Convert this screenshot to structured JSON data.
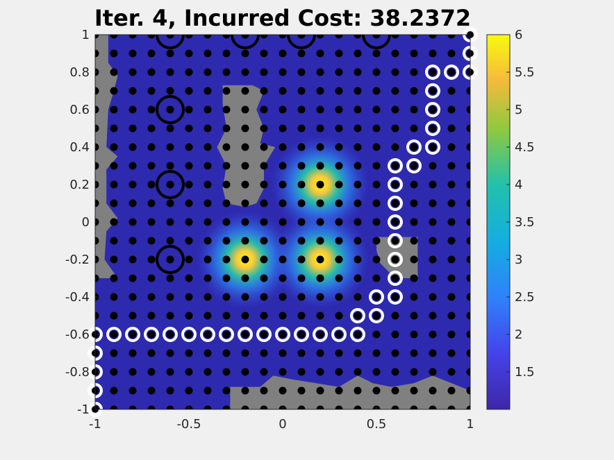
{
  "chart_data": {
    "type": "heatmap",
    "title": "Iter. 4,   Incurred Cost: 38.2372",
    "xlabel": "",
    "ylabel": "",
    "xlim": [
      -1,
      1
    ],
    "ylim": [
      -1,
      1
    ],
    "x_ticks": [
      "-1",
      "-0.5",
      "0",
      "0.5",
      "1"
    ],
    "y_ticks": [
      "1",
      "0.8",
      "0.6",
      "0.4",
      "0.2",
      "0",
      "-0.2",
      "-0.4",
      "-0.6",
      "-0.8",
      "-1"
    ],
    "colorbar": {
      "range": [
        1,
        6
      ],
      "ticks": [
        "1.5",
        "2",
        "2.5",
        "3",
        "3.5",
        "4",
        "4.5",
        "5",
        "5.5",
        "6"
      ]
    },
    "colors": {
      "background": "#2d2ab0",
      "obstacle": "#808080",
      "grid_point": "#000000",
      "path_marker": "#ffffff",
      "target_marker": "#000000"
    },
    "hot_spots": [
      {
        "x": 0.2,
        "y": 0.2,
        "peak": 6
      },
      {
        "x": -0.2,
        "y": -0.2,
        "peak": 5.8
      },
      {
        "x": 0.2,
        "y": -0.2,
        "peak": 6
      }
    ],
    "obstacles": [
      {
        "polygon": [
          [
            -1,
            1
          ],
          [
            -0.93,
            1
          ],
          [
            -0.93,
            0.85
          ],
          [
            -0.88,
            0.78
          ],
          [
            -0.9,
            0.7
          ],
          [
            -0.93,
            0.6
          ],
          [
            -0.94,
            0.4
          ],
          [
            -0.88,
            0.35
          ],
          [
            -0.94,
            0.28
          ],
          [
            -0.94,
            0.1
          ],
          [
            -0.88,
            0.02
          ],
          [
            -0.94,
            -0.05
          ],
          [
            -0.95,
            -0.2
          ],
          [
            -0.88,
            -0.3
          ],
          [
            -1,
            -0.3
          ]
        ]
      },
      {
        "polygon": [
          [
            -0.32,
            0.73
          ],
          [
            -0.16,
            0.73
          ],
          [
            -0.1,
            0.7
          ],
          [
            -0.14,
            0.6
          ],
          [
            -0.1,
            0.5
          ],
          [
            -0.12,
            0.42
          ],
          [
            -0.04,
            0.4
          ],
          [
            -0.1,
            0.3
          ],
          [
            -0.1,
            0.18
          ],
          [
            -0.14,
            0.1
          ],
          [
            -0.2,
            0.08
          ],
          [
            -0.3,
            0.1
          ],
          [
            -0.32,
            0.18
          ],
          [
            -0.3,
            0.3
          ],
          [
            -0.35,
            0.4
          ],
          [
            -0.3,
            0.5
          ],
          [
            -0.32,
            0.63
          ]
        ]
      },
      {
        "polygon": [
          [
            0.5,
            -0.08
          ],
          [
            0.72,
            -0.08
          ],
          [
            0.72,
            -0.3
          ],
          [
            0.6,
            -0.3
          ],
          [
            0.52,
            -0.22
          ],
          [
            0.5,
            -0.15
          ]
        ]
      },
      {
        "polygon": [
          [
            -0.28,
            -1
          ],
          [
            -0.28,
            -0.88
          ],
          [
            -0.12,
            -0.88
          ],
          [
            -0.05,
            -0.82
          ],
          [
            0.05,
            -0.84
          ],
          [
            0.3,
            -0.88
          ],
          [
            0.4,
            -0.82
          ],
          [
            0.48,
            -0.86
          ],
          [
            0.58,
            -0.88
          ],
          [
            0.7,
            -0.86
          ],
          [
            0.8,
            -0.82
          ],
          [
            0.9,
            -0.86
          ],
          [
            1,
            -0.9
          ],
          [
            1,
            -1
          ]
        ]
      }
    ],
    "path": [
      [
        -1,
        -1
      ],
      [
        -1,
        -0.9
      ],
      [
        -1,
        -0.8
      ],
      [
        -1,
        -0.7
      ],
      [
        -1,
        -0.6
      ],
      [
        -0.9,
        -0.6
      ],
      [
        -0.8,
        -0.6
      ],
      [
        -0.7,
        -0.6
      ],
      [
        -0.6,
        -0.6
      ],
      [
        -0.5,
        -0.6
      ],
      [
        -0.4,
        -0.6
      ],
      [
        -0.3,
        -0.6
      ],
      [
        -0.2,
        -0.6
      ],
      [
        -0.1,
        -0.6
      ],
      [
        0,
        -0.6
      ],
      [
        0.1,
        -0.6
      ],
      [
        0.2,
        -0.6
      ],
      [
        0.3,
        -0.6
      ],
      [
        0.4,
        -0.6
      ],
      [
        0.4,
        -0.5
      ],
      [
        0.5,
        -0.5
      ],
      [
        0.5,
        -0.4
      ],
      [
        0.6,
        -0.4
      ],
      [
        0.6,
        -0.3
      ],
      [
        0.6,
        -0.2
      ],
      [
        0.6,
        -0.1
      ],
      [
        0.6,
        0
      ],
      [
        0.6,
        0.1
      ],
      [
        0.6,
        0.2
      ],
      [
        0.6,
        0.3
      ],
      [
        0.7,
        0.3
      ],
      [
        0.7,
        0.4
      ],
      [
        0.8,
        0.4
      ],
      [
        0.8,
        0.5
      ],
      [
        0.8,
        0.6
      ],
      [
        0.8,
        0.7
      ],
      [
        0.8,
        0.8
      ],
      [
        0.9,
        0.8
      ],
      [
        1,
        0.8
      ],
      [
        1,
        0.9
      ],
      [
        1,
        1
      ]
    ],
    "targets": [
      [
        -0.6,
        1
      ],
      [
        -0.2,
        1
      ],
      [
        0.1,
        1
      ],
      [
        0.5,
        1
      ],
      [
        -0.6,
        0.6
      ],
      [
        -0.6,
        0.2
      ],
      [
        -0.6,
        -0.2
      ]
    ],
    "grid_points": {
      "x_start": -1,
      "x_end": 1,
      "x_step": 0.1,
      "y_start": -1,
      "y_end": 1,
      "y_step": 0.1
    }
  }
}
